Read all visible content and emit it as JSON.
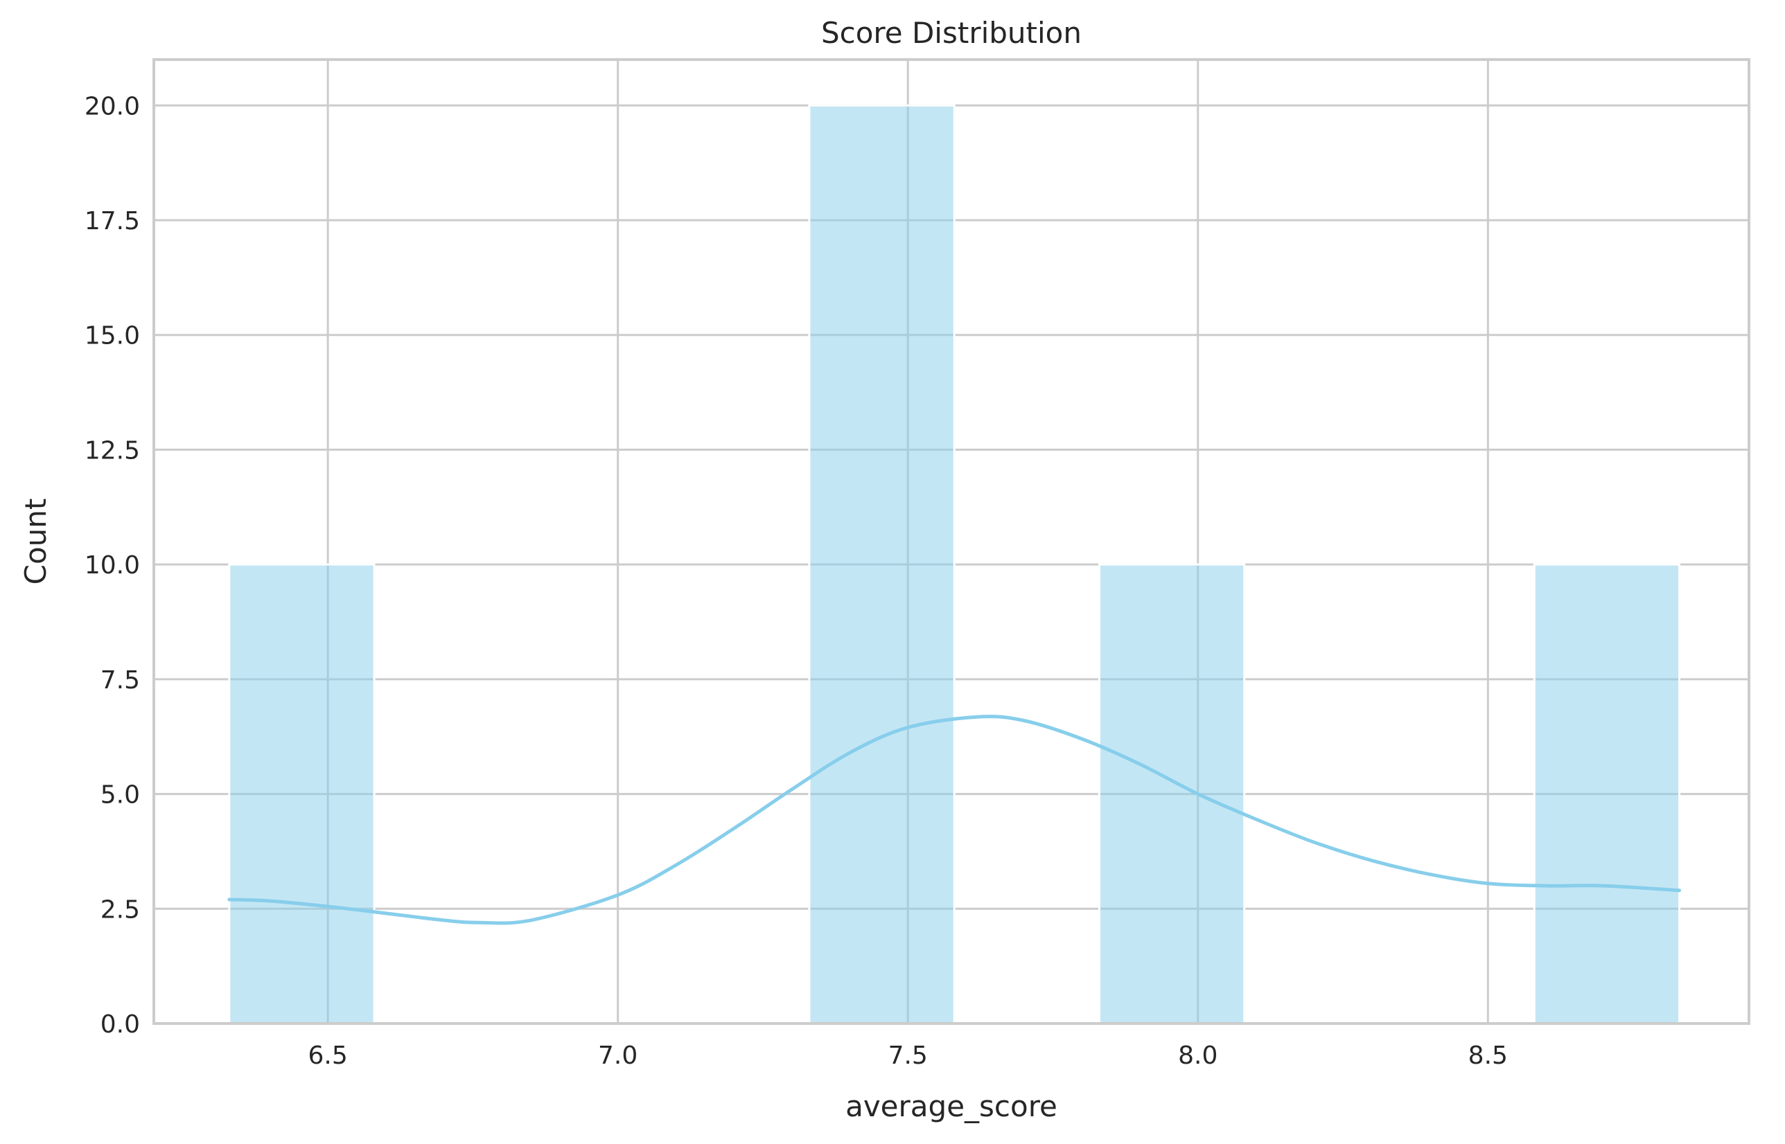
{
  "chart_data": {
    "type": "bar",
    "subtype": "histogram-with-kde",
    "title": "Score Distribution",
    "xlabel": "average_score",
    "ylabel": "Count",
    "xlim": [
      6.2,
      8.95
    ],
    "ylim": [
      0,
      21
    ],
    "xticks": [
      6.5,
      7.0,
      7.5,
      8.0,
      8.5
    ],
    "xtick_labels": [
      "6.5",
      "7.0",
      "7.5",
      "8.0",
      "8.5"
    ],
    "yticks": [
      0,
      2.5,
      5,
      7.5,
      10,
      12.5,
      15,
      17.5,
      20
    ],
    "ytick_labels": [
      "0.0",
      "2.5",
      "5.0",
      "7.5",
      "10.0",
      "12.5",
      "15.0",
      "17.5",
      "20.0"
    ],
    "grid": true,
    "bin_width": 0.25,
    "bins": [
      {
        "x0": 6.33,
        "x1": 6.58,
        "count": 10
      },
      {
        "x0": 6.58,
        "x1": 6.83,
        "count": 0
      },
      {
        "x0": 6.83,
        "x1": 7.08,
        "count": 0
      },
      {
        "x0": 7.08,
        "x1": 7.33,
        "count": 0
      },
      {
        "x0": 7.33,
        "x1": 7.58,
        "count": 20
      },
      {
        "x0": 7.58,
        "x1": 7.83,
        "count": 0
      },
      {
        "x0": 7.83,
        "x1": 8.08,
        "count": 10
      },
      {
        "x0": 8.08,
        "x1": 8.33,
        "count": 0
      },
      {
        "x0": 8.33,
        "x1": 8.58,
        "count": 0
      },
      {
        "x0": 8.58,
        "x1": 8.83,
        "count": 10
      }
    ],
    "kde": {
      "x": [
        6.33,
        6.4,
        6.5,
        6.6,
        6.7,
        6.76,
        6.85,
        7.0,
        7.1,
        7.2,
        7.3,
        7.4,
        7.5,
        7.62,
        7.7,
        7.8,
        7.9,
        8.0,
        8.1,
        8.2,
        8.3,
        8.4,
        8.5,
        8.6,
        8.7,
        8.83
      ],
      "y": [
        2.7,
        2.67,
        2.55,
        2.4,
        2.25,
        2.2,
        2.25,
        2.8,
        3.45,
        4.25,
        5.1,
        5.9,
        6.45,
        6.68,
        6.6,
        6.2,
        5.65,
        5.0,
        4.45,
        3.95,
        3.55,
        3.25,
        3.05,
        3.0,
        3.0,
        2.9
      ]
    },
    "colors": {
      "bar_fill": "#87ceeb",
      "bar_opacity": 0.5,
      "kde_line": "#87ceeb",
      "grid": "#cccccc",
      "axes_edge": "#cccccc",
      "text": "#262626"
    }
  }
}
